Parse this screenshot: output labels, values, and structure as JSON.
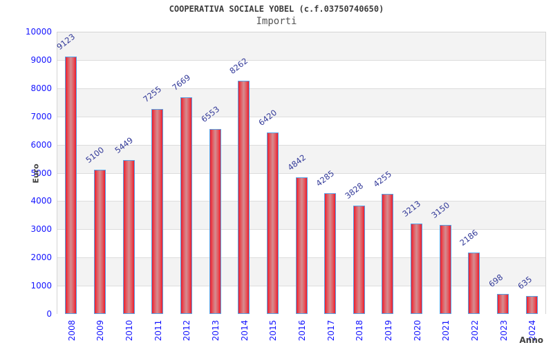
{
  "header": {
    "title": "COOPERATIVA SOCIALE YOBEL (c.f.03750740650)",
    "subtitle": "Importi"
  },
  "chart_data": {
    "type": "bar",
    "title": "COOPERATIVA SOCIALE YOBEL (c.f.03750740650)",
    "subtitle": "Importi",
    "xlabel": "Anno",
    "ylabel": "Euro",
    "categories": [
      "2008",
      "2009",
      "2010",
      "2011",
      "2012",
      "2013",
      "2014",
      "2015",
      "2016",
      "2017",
      "2018",
      "2019",
      "2020",
      "2021",
      "2022",
      "2023",
      "2024"
    ],
    "values": [
      9123,
      5100,
      5449,
      7255,
      7669,
      6553,
      8262,
      6420,
      4842,
      4285,
      3828,
      4255,
      3213,
      3150,
      2186,
      698,
      635
    ],
    "ylim": [
      0,
      10000
    ],
    "ytick_step": 1000,
    "grid": "horizontal-alternating-bands",
    "legend": "none",
    "bar_value_labels": true,
    "colors": {
      "bar_fill_edge": "#ee1b2c",
      "bar_fill_mid": "#d58d91",
      "bar_border": "#55a1e6",
      "tick_label": "#1414ff",
      "value_label": "#333a99",
      "band_gray": "#f3f3f3",
      "band_white": "#ffffff",
      "gridline": "#dcdcdc",
      "axis_title": "#404040",
      "title": "#3c3c3c",
      "subtitle": "#555555"
    }
  }
}
